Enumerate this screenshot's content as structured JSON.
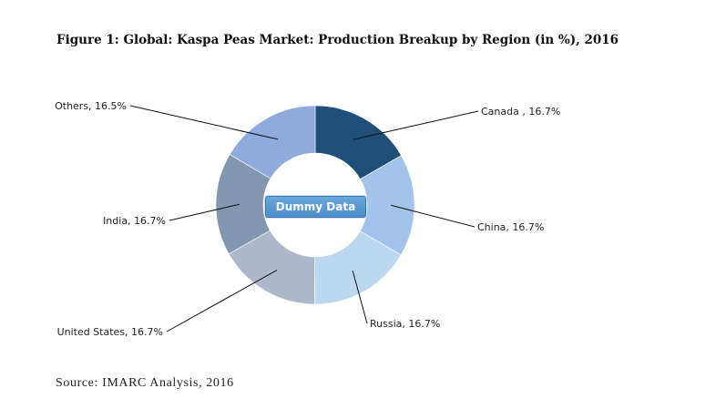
{
  "title": "Figure 1: Global: Kaspa Peas Market: Production Breakup by Region (in %), 2016",
  "source": "Source: IMARC Analysis, 2016",
  "watermark": "Dummy Data",
  "chart_data": {
    "type": "pie",
    "variant": "donut",
    "categories": [
      "Canada",
      "China",
      "Russia",
      "United States",
      "India",
      "Others"
    ],
    "values": [
      16.7,
      16.7,
      16.7,
      16.7,
      16.7,
      16.5
    ],
    "labels": [
      "Canada , 16.7%",
      "China, 16.7%",
      "Russia, 16.7%",
      "United States, 16.7%",
      "India, 16.7%",
      "Others, 16.5%"
    ],
    "colors": [
      "#1f4e79",
      "#a2c4e8",
      "#bdd7ee",
      "#adb9ca",
      "#8497b0",
      "#8faadc"
    ],
    "legend": "none"
  }
}
